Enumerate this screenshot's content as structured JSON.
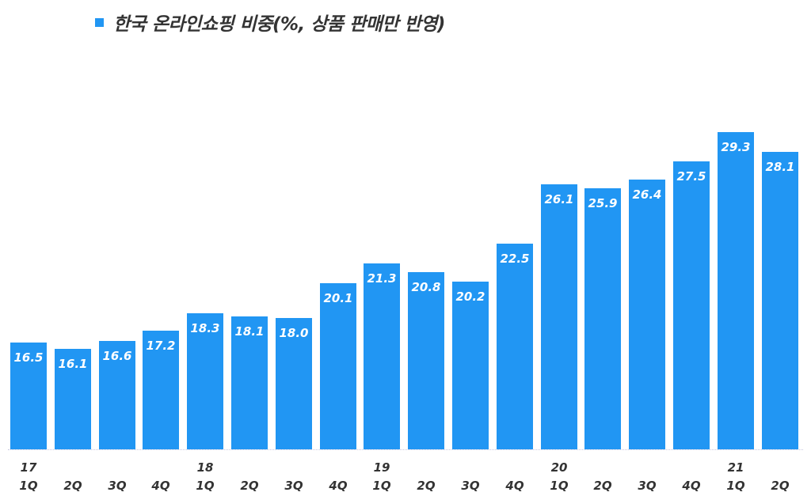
{
  "legend": {
    "label": "한국 온라인쇼핑 비중(%, 상품 판매만 반영)",
    "color": "#2196f3"
  },
  "chart_data": {
    "type": "bar",
    "title": "",
    "legend": [
      "한국 온라인쇼핑 비중(%, 상품 판매만 반영)"
    ],
    "legend_position": "top",
    "categories": [
      "17 1Q",
      "2Q",
      "3Q",
      "4Q",
      "18 1Q",
      "2Q",
      "3Q",
      "4Q",
      "19 1Q",
      "2Q",
      "3Q",
      "4Q",
      "20 1Q",
      "2Q",
      "3Q",
      "4Q",
      "21 1Q",
      "2Q"
    ],
    "year_labels": [
      "17",
      "",
      "",
      "",
      "18",
      "",
      "",
      "",
      "19",
      "",
      "",
      "",
      "20",
      "",
      "",
      "",
      "21",
      ""
    ],
    "quarter_labels": [
      "1Q",
      "2Q",
      "3Q",
      "4Q",
      "1Q",
      "2Q",
      "3Q",
      "4Q",
      "1Q",
      "2Q",
      "3Q",
      "4Q",
      "1Q",
      "2Q",
      "3Q",
      "4Q",
      "1Q",
      "2Q"
    ],
    "values": [
      16.5,
      16.1,
      16.6,
      17.2,
      18.3,
      18.1,
      18.0,
      20.1,
      21.3,
      20.8,
      20.2,
      22.5,
      26.1,
      25.9,
      26.4,
      27.5,
      29.3,
      28.1
    ],
    "value_labels": [
      "16.5",
      "16.1",
      "16.6",
      "17.2",
      "18.3",
      "18.1",
      "18.0",
      "20.1",
      "21.3",
      "20.8",
      "20.2",
      "22.5",
      "26.1",
      "25.9",
      "26.4",
      "27.5",
      "29.3",
      "28.1"
    ],
    "xlabel": "",
    "ylabel": "",
    "ylim": [
      10,
      30
    ],
    "grid": false,
    "bar_color": "#2196f3"
  }
}
